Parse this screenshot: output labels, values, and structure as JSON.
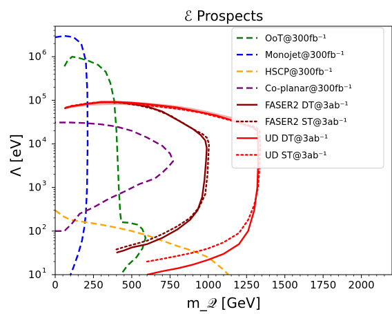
{
  "chart_data": {
    "type": "line",
    "title": "ℰ Prospects",
    "xlabel": "m_𝒬 [GeV]",
    "ylabel": "Λ [eV]",
    "xlim": [
      0,
      2200
    ],
    "ylim": [
      10,
      5000000
    ],
    "yscale": "log",
    "grid": false,
    "legend_position": "top-right",
    "x_ticks": [
      0,
      250,
      500,
      750,
      1000,
      1250,
      1500,
      1750,
      2000
    ],
    "x_tick_labels": [
      "0",
      "250",
      "500",
      "750",
      "1000",
      "1250",
      "1500",
      "1750",
      "2000"
    ],
    "y_ticks": [
      10,
      100,
      1000,
      10000,
      100000,
      1000000
    ],
    "y_tick_labels": [
      "10^1",
      "10^2",
      "10^3",
      "10^4",
      "10^5",
      "10^6"
    ],
    "series": [
      {
        "name": "OoT@300fb⁻¹",
        "color": "#008000",
        "style": "dashed",
        "points": [
          [
            60,
            600000
          ],
          [
            80,
            800000
          ],
          [
            110,
            1000000
          ],
          [
            150,
            950000
          ],
          [
            220,
            800000
          ],
          [
            280,
            650000
          ],
          [
            330,
            450000
          ],
          [
            360,
            250000
          ],
          [
            385,
            100000
          ],
          [
            400,
            20000
          ],
          [
            410,
            3000
          ],
          [
            415,
            1000
          ],
          [
            420,
            500
          ],
          [
            425,
            250
          ],
          [
            432,
            160
          ],
          [
            480,
            155
          ],
          [
            540,
            140
          ],
          [
            570,
            110
          ],
          [
            590,
            70
          ],
          [
            570,
            40
          ],
          [
            530,
            25
          ],
          [
            500,
            20
          ],
          [
            470,
            16
          ],
          [
            445,
            12
          ],
          [
            425,
            10
          ]
        ]
      },
      {
        "name": "Monojet@300fb⁻¹",
        "color": "#0000ff",
        "style": "dashed",
        "points": [
          [
            0,
            2800000
          ],
          [
            60,
            3000000
          ],
          [
            120,
            2800000
          ],
          [
            170,
            2000000
          ],
          [
            200,
            800000
          ],
          [
            210,
            150000
          ],
          [
            212,
            10000
          ],
          [
            208,
            1000
          ],
          [
            200,
            250
          ],
          [
            190,
            120
          ],
          [
            175,
            60
          ],
          [
            150,
            30
          ],
          [
            120,
            15
          ],
          [
            100,
            10
          ]
        ]
      },
      {
        "name": "HSCP@300fb⁻¹",
        "color": "#ffa500",
        "style": "dashed",
        "points": [
          [
            0,
            300
          ],
          [
            50,
            220
          ],
          [
            100,
            180
          ],
          [
            200,
            160
          ],
          [
            300,
            140
          ],
          [
            400,
            120
          ],
          [
            500,
            100
          ],
          [
            600,
            80
          ],
          [
            700,
            60
          ],
          [
            800,
            45
          ],
          [
            900,
            35
          ],
          [
            1000,
            25
          ],
          [
            1050,
            18
          ],
          [
            1100,
            13
          ],
          [
            1130,
            10
          ]
        ]
      },
      {
        "name": "Co-planar@300fb⁻¹",
        "color": "#800080",
        "style": "dashed",
        "points": [
          [
            0,
            100
          ],
          [
            60,
            100
          ],
          [
            110,
            150
          ],
          [
            160,
            250
          ],
          [
            250,
            350
          ],
          [
            350,
            550
          ],
          [
            450,
            800
          ],
          [
            550,
            1200
          ],
          [
            650,
            1600
          ],
          [
            700,
            2200
          ],
          [
            740,
            3000
          ],
          [
            770,
            4000
          ],
          [
            750,
            6000
          ],
          [
            700,
            9000
          ],
          [
            600,
            14000
          ],
          [
            500,
            20000
          ],
          [
            400,
            25000
          ],
          [
            300,
            28000
          ],
          [
            200,
            30000
          ],
          [
            100,
            31000
          ],
          [
            0,
            31000
          ]
        ]
      },
      {
        "name": "FASER2 DT@3ab⁻¹",
        "color": "#8b0000",
        "style": "solid",
        "points": [
          [
            400,
            32
          ],
          [
            450,
            36
          ],
          [
            500,
            42
          ],
          [
            600,
            50
          ],
          [
            700,
            70
          ],
          [
            800,
            110
          ],
          [
            880,
            180
          ],
          [
            930,
            300
          ],
          [
            960,
            600
          ],
          [
            975,
            1500
          ],
          [
            985,
            4000
          ],
          [
            990,
            8000
          ],
          [
            980,
            12000
          ],
          [
            950,
            16000
          ],
          [
            900,
            22000
          ],
          [
            800,
            35000
          ],
          [
            700,
            55000
          ],
          [
            600,
            72000
          ],
          [
            500,
            83000
          ],
          [
            400,
            90000
          ],
          [
            300,
            90000
          ],
          [
            200,
            82000
          ],
          [
            100,
            72000
          ],
          [
            60,
            65000
          ]
        ]
      },
      {
        "name": "FASER2 ST@3ab⁻¹",
        "color": "#8b0000",
        "style": "dotted",
        "points": [
          [
            400,
            38
          ],
          [
            450,
            43
          ],
          [
            500,
            48
          ],
          [
            600,
            60
          ],
          [
            700,
            85
          ],
          [
            800,
            130
          ],
          [
            880,
            200
          ],
          [
            940,
            350
          ],
          [
            980,
            700
          ],
          [
            995,
            2000
          ],
          [
            1000,
            5000
          ],
          [
            1005,
            10000
          ],
          [
            990,
            14000
          ],
          [
            960,
            17000
          ],
          [
            920,
            20000
          ],
          [
            850,
            28000
          ],
          [
            750,
            45000
          ],
          [
            650,
            62000
          ],
          [
            550,
            76000
          ],
          [
            450,
            86000
          ],
          [
            350,
            91000
          ],
          [
            250,
            88000
          ],
          [
            150,
            78000
          ],
          [
            60,
            67000
          ]
        ]
      },
      {
        "name": "UD DT@3ab⁻¹",
        "color": "#ff0000",
        "style": "solid",
        "points": [
          [
            600,
            10
          ],
          [
            700,
            12
          ],
          [
            800,
            14
          ],
          [
            900,
            17
          ],
          [
            1000,
            22
          ],
          [
            1100,
            30
          ],
          [
            1200,
            50
          ],
          [
            1260,
            100
          ],
          [
            1300,
            300
          ],
          [
            1320,
            1000
          ],
          [
            1325,
            3000
          ],
          [
            1325,
            10000
          ],
          [
            1320,
            20000
          ],
          [
            1290,
            24000
          ],
          [
            1230,
            28000
          ],
          [
            1150,
            35000
          ],
          [
            1050,
            45000
          ],
          [
            900,
            58000
          ],
          [
            800,
            68000
          ],
          [
            700,
            75000
          ],
          [
            600,
            82000
          ],
          [
            500,
            88000
          ],
          [
            400,
            92000
          ],
          [
            300,
            92000
          ],
          [
            200,
            82000
          ],
          [
            100,
            72000
          ],
          [
            60,
            65000
          ]
        ]
      },
      {
        "name": "UD ST@3ab⁻¹",
        "color": "#ff0000",
        "style": "dotted",
        "points": [
          [
            600,
            20
          ],
          [
            700,
            23
          ],
          [
            800,
            27
          ],
          [
            900,
            32
          ],
          [
            1000,
            40
          ],
          [
            1100,
            55
          ],
          [
            1200,
            90
          ],
          [
            1260,
            180
          ],
          [
            1300,
            400
          ],
          [
            1325,
            1000
          ],
          [
            1335,
            3000
          ],
          [
            1340,
            10000
          ],
          [
            1335,
            20000
          ],
          [
            1310,
            24000
          ],
          [
            1260,
            27000
          ],
          [
            1180,
            32000
          ],
          [
            1080,
            40000
          ],
          [
            950,
            52000
          ],
          [
            820,
            62000
          ],
          [
            700,
            70000
          ],
          [
            600,
            77000
          ],
          [
            500,
            84000
          ],
          [
            400,
            89000
          ],
          [
            300,
            91000
          ],
          [
            200,
            84000
          ],
          [
            100,
            74000
          ],
          [
            60,
            66000
          ]
        ]
      }
    ],
    "band": {
      "color": "#d9534f",
      "opacity": 0.45,
      "upper": [
        [
          60,
          66000
        ],
        [
          200,
          86000
        ],
        [
          300,
          95000
        ],
        [
          400,
          96000
        ],
        [
          500,
          93000
        ],
        [
          600,
          88000
        ],
        [
          700,
          82000
        ],
        [
          800,
          75000
        ],
        [
          900,
          66000
        ],
        [
          1000,
          56000
        ],
        [
          1100,
          46000
        ],
        [
          1200,
          38000
        ],
        [
          1230,
          34000
        ]
      ],
      "lower": [
        [
          1230,
          28000
        ],
        [
          1150,
          34000
        ],
        [
          1050,
          42000
        ],
        [
          950,
          50000
        ],
        [
          850,
          58000
        ],
        [
          750,
          64000
        ],
        [
          650,
          70000
        ],
        [
          550,
          74000
        ],
        [
          450,
          78000
        ],
        [
          350,
          78000
        ],
        [
          250,
          76000
        ],
        [
          150,
          70000
        ],
        [
          60,
          64000
        ]
      ]
    }
  }
}
